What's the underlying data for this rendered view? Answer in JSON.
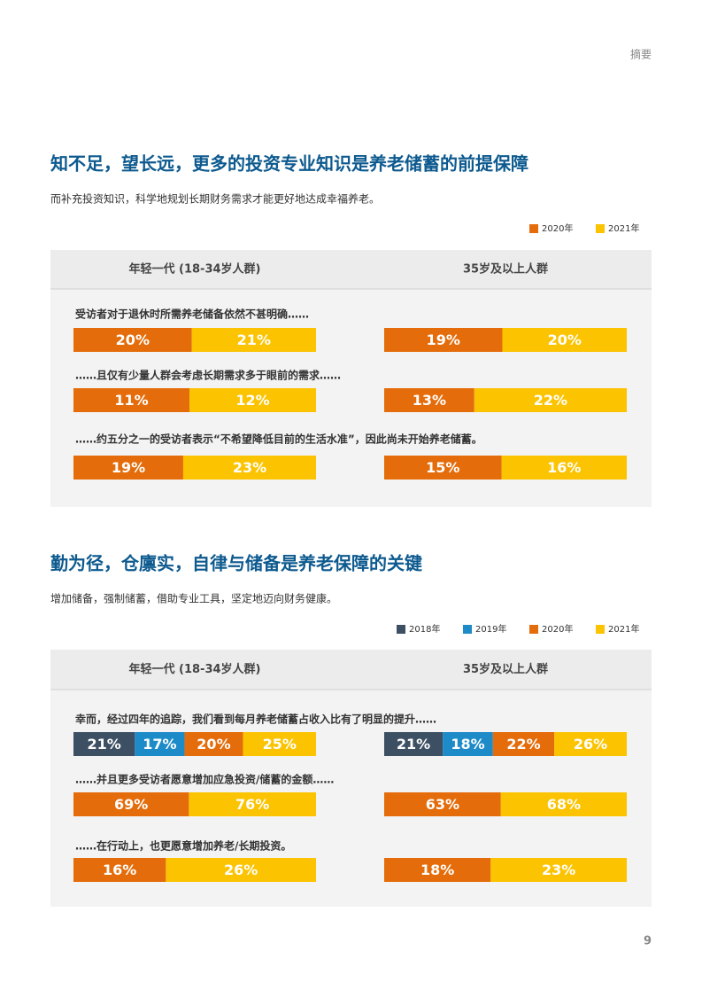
{
  "header": "摘要",
  "page_number": 9,
  "chart_data": [
    {
      "type": "bar",
      "stacked": true,
      "orientation": "horizontal",
      "title": "知不足，望长远，更多的投资专业知识是养老储蓄的前提保障",
      "subtitle": "而补充投资知识，科学地规划长期财务需求才能更好地达成幸福养老。",
      "panels": [
        "年轻一代 (18-34岁人群)",
        "35岁及以上人群"
      ],
      "categories": [
        "受访者对于退休时所需养老储备依然不甚明确……",
        "……且仅有少量人群会考虑长期需求多于眼前的需求……",
        "……约五分之一的受访者表示“不希望降低目前的生活水准”，因此尚未开始养老储蓄。"
      ],
      "series": [
        {
          "name": "2020年",
          "color": "#e46c0a",
          "values": [
            [
              20,
              19
            ],
            [
              11,
              13
            ],
            [
              19,
              15
            ]
          ],
          "value_labels": [
            [
              "20%",
              "19%"
            ],
            [
              "11%",
              "13%"
            ],
            [
              "19%",
              "15%"
            ]
          ]
        },
        {
          "name": "2021年",
          "color": "#fbc300",
          "values": [
            [
              21,
              20
            ],
            [
              12,
              22
            ],
            [
              23,
              16
            ]
          ],
          "value_labels": [
            [
              "21%",
              "20%"
            ],
            [
              "12%",
              "22%"
            ],
            [
              "23%",
              "16%"
            ]
          ]
        }
      ]
    },
    {
      "type": "bar",
      "stacked": true,
      "orientation": "horizontal",
      "title": "勤为径，仓廪实，自律与储备是养老保障的关键",
      "subtitle": "增加储备，强制储蓄，借助专业工具，坚定地迈向财务健康。",
      "panels": [
        "年轻一代 (18-34岁人群)",
        "35岁及以上人群"
      ],
      "categories": [
        "幸而，经过四年的追踪，我们看到每月养老储蓄占收入比有了明显的提升……",
        "……并且更多受访者愿意增加应急投资/储蓄的金额……",
        "……在行动上，也更愿意增加养老/长期投资。"
      ],
      "series": [
        {
          "name": "2018年",
          "color": "#3d4f63",
          "values": [
            [
              21,
              21
            ],
            [
              null,
              null
            ],
            [
              null,
              null
            ]
          ],
          "value_labels": [
            [
              "21%",
              "21%"
            ],
            [
              null,
              null
            ],
            [
              null,
              null
            ]
          ]
        },
        {
          "name": "2019年",
          "color": "#1e8bc9",
          "values": [
            [
              17,
              18
            ],
            [
              null,
              null
            ],
            [
              null,
              null
            ]
          ],
          "value_labels": [
            [
              "17%",
              "18%"
            ],
            [
              null,
              null
            ],
            [
              null,
              null
            ]
          ]
        },
        {
          "name": "2020年",
          "color": "#e46c0a",
          "values": [
            [
              20,
              22
            ],
            [
              69,
              63
            ],
            [
              16,
              18
            ]
          ],
          "value_labels": [
            [
              "20%",
              "22%"
            ],
            [
              "69%",
              "63%"
            ],
            [
              "16%",
              "18%"
            ]
          ]
        },
        {
          "name": "2021年",
          "color": "#fbc300",
          "values": [
            [
              25,
              26
            ],
            [
              76,
              68
            ],
            [
              26,
              23
            ]
          ],
          "value_labels": [
            [
              "25%",
              "26%"
            ],
            [
              "76%",
              "68%"
            ],
            [
              "26%",
              "23%"
            ]
          ]
        }
      ]
    }
  ]
}
